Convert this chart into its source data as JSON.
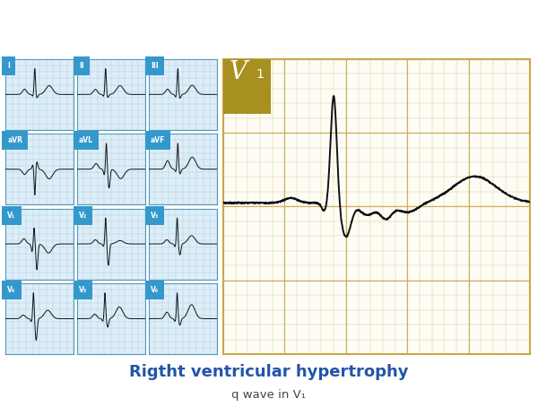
{
  "bg_color": "#ffffff",
  "small_bg_color": "#ddeef8",
  "small_grid_fine": "#aaccdd",
  "small_border": "#5599bb",
  "label_bg_blue": "#3399cc",
  "label_text_color": "#ffffff",
  "ecg_line_color": "#111111",
  "main_bg_color": "#fdfcf5",
  "main_grid_fine": "#d4b86a",
  "main_grid_bold": "#c8a84a",
  "main_border": "#c8a84a",
  "v1_label_bg": "#a89020",
  "v1_label_text": "#ffffff",
  "title_text": "Rigtht ventricular hypertrophy",
  "subtitle_text": "q wave in V₁",
  "title_color": "#2255aa",
  "subtitle_color": "#444444",
  "small_panel_labels": [
    "I",
    "II",
    "III",
    "aVR",
    "aVL",
    "aVF",
    "V₁",
    "V₂",
    "V₃",
    "V₄",
    "V₅",
    "V₆"
  ],
  "fig_width": 6.0,
  "fig_height": 4.54,
  "fig_dpi": 100
}
